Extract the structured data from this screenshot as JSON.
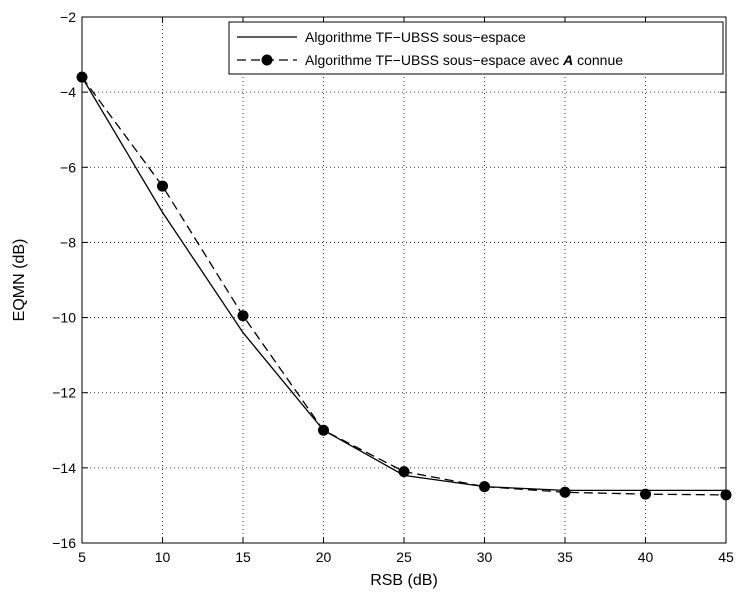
{
  "chart_data": {
    "type": "line",
    "title": "",
    "xlabel": "RSB (dB)",
    "ylabel": "EQMN (dB)",
    "xlim": [
      5,
      45
    ],
    "ylim": [
      -16,
      -2
    ],
    "xticks": [
      5,
      10,
      15,
      20,
      25,
      30,
      35,
      40,
      45
    ],
    "yticks": [
      -2,
      -4,
      -6,
      -8,
      -10,
      -12,
      -14,
      -16
    ],
    "xtick_labels": [
      "5",
      "10",
      "15",
      "20",
      "25",
      "30",
      "35",
      "40",
      "45"
    ],
    "ytick_labels": [
      "−2",
      "−4",
      "−6",
      "−8",
      "−10",
      "−12",
      "−14",
      "−16"
    ],
    "grid": true,
    "legend_position": "top-right",
    "x": [
      5,
      10,
      15,
      20,
      25,
      30,
      35,
      40,
      45
    ],
    "series": [
      {
        "name": "Algorithme TF−UBSS sous−espace",
        "legend_parts": [
          {
            "text": "Algorithme TF−UBSS sous−espace",
            "style": "normal"
          }
        ],
        "values": [
          -3.6,
          -7.2,
          -10.4,
          -13.0,
          -14.2,
          -14.5,
          -14.6,
          -14.6,
          -14.6
        ],
        "line": "solid",
        "marker": "none",
        "color": "#000000"
      },
      {
        "name": "Algorithme TF−UBSS sous−espace avec A connue",
        "legend_parts": [
          {
            "text": "Algorithme TF−UBSS sous−espace avec ",
            "style": "normal"
          },
          {
            "text": "A",
            "style": "bold-italic"
          },
          {
            "text": " connue",
            "style": "normal"
          }
        ],
        "values": [
          -3.6,
          -6.5,
          -9.95,
          -13.0,
          -14.1,
          -14.5,
          -14.65,
          -14.7,
          -14.72
        ],
        "line": "dashed",
        "marker": "filled-circle",
        "color": "#000000"
      }
    ]
  }
}
